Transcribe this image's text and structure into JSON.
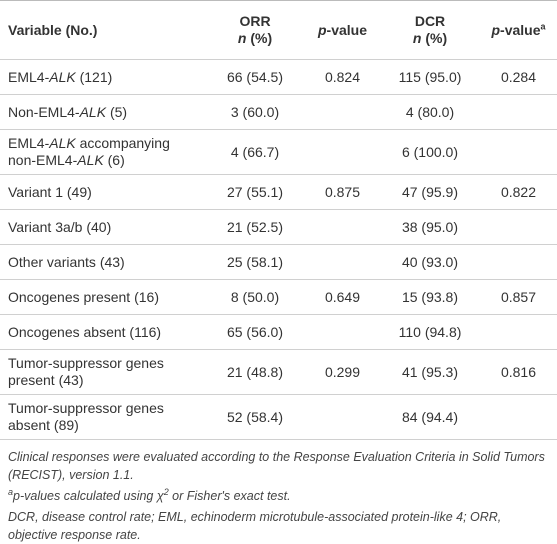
{
  "table": {
    "header": [
      [
        [
          {
            "text": "Variable (No.)"
          }
        ]
      ],
      [
        [
          {
            "text": "ORR"
          }
        ],
        [
          {
            "text": "n",
            "style": "italic"
          },
          {
            "text": " (%)"
          }
        ]
      ],
      [
        [
          {
            "text": "p",
            "style": "italic"
          },
          {
            "text": "-value"
          }
        ]
      ],
      [
        [
          {
            "text": "DCR"
          }
        ],
        [
          {
            "text": "n",
            "style": "italic"
          },
          {
            "text": " (%)"
          }
        ]
      ],
      [
        [
          {
            "text": "p",
            "style": "italic"
          },
          {
            "text": "-value"
          },
          {
            "text": "a",
            "style": "sup"
          }
        ]
      ]
    ],
    "rows": [
      [
        [
          {
            "text": "EML4-"
          },
          {
            "text": "ALK",
            "style": "italic"
          },
          {
            "text": " (121)"
          }
        ],
        "66 (54.5)",
        "0.824",
        "115 (95.0)",
        "0.284"
      ],
      [
        [
          {
            "text": "Non-EML4-"
          },
          {
            "text": "ALK",
            "style": "italic"
          },
          {
            "text": " (5)"
          }
        ],
        "3 (60.0)",
        null,
        "4 (80.0)",
        null
      ],
      [
        [
          {
            "text": "EML4-"
          },
          {
            "text": "ALK",
            "style": "italic"
          },
          {
            "text": " accompanying non-EML4-"
          },
          {
            "text": "ALK",
            "style": "italic"
          },
          {
            "text": " (6)"
          }
        ],
        "4 (66.7)",
        null,
        "6 (100.0)",
        null
      ],
      [
        "Variant 1 (49)",
        "27 (55.1)",
        "0.875",
        "47 (95.9)",
        "0.822"
      ],
      [
        "Variant 3a/b (40)",
        "21 (52.5)",
        null,
        "38 (95.0)",
        null
      ],
      [
        "Other variants (43)",
        "25 (58.1)",
        null,
        "40 (93.0)",
        null
      ],
      [
        "Oncogenes present (16)",
        "8 (50.0)",
        "0.649",
        "15 (93.8)",
        "0.857"
      ],
      [
        "Oncogenes absent (116)",
        "65 (56.0)",
        null,
        "110 (94.8)",
        null
      ],
      [
        "Tumor-suppressor genes present (43)",
        "21 (48.8)",
        "0.299",
        "41 (95.3)",
        "0.816"
      ],
      [
        "Tumor-suppressor genes absent (89)",
        "52 (58.4)",
        null,
        "84 (94.4)",
        null
      ]
    ],
    "footnotes": [
      "Clinical responses were evaluated according to the Response Evaluation Criteria in Solid Tumors (RECIST), version 1.1.",
      [
        {
          "text": "a",
          "style": "sup"
        },
        {
          "text": "p"
        },
        {
          "text": "-values calculated using χ"
        },
        {
          "text": "2",
          "style": "sup"
        },
        {
          "text": " or Fisher's exact test."
        }
      ],
      "DCR, disease control rate; EML, echinoderm microtubule-associated protein-like 4; ORR, objective response rate."
    ]
  }
}
